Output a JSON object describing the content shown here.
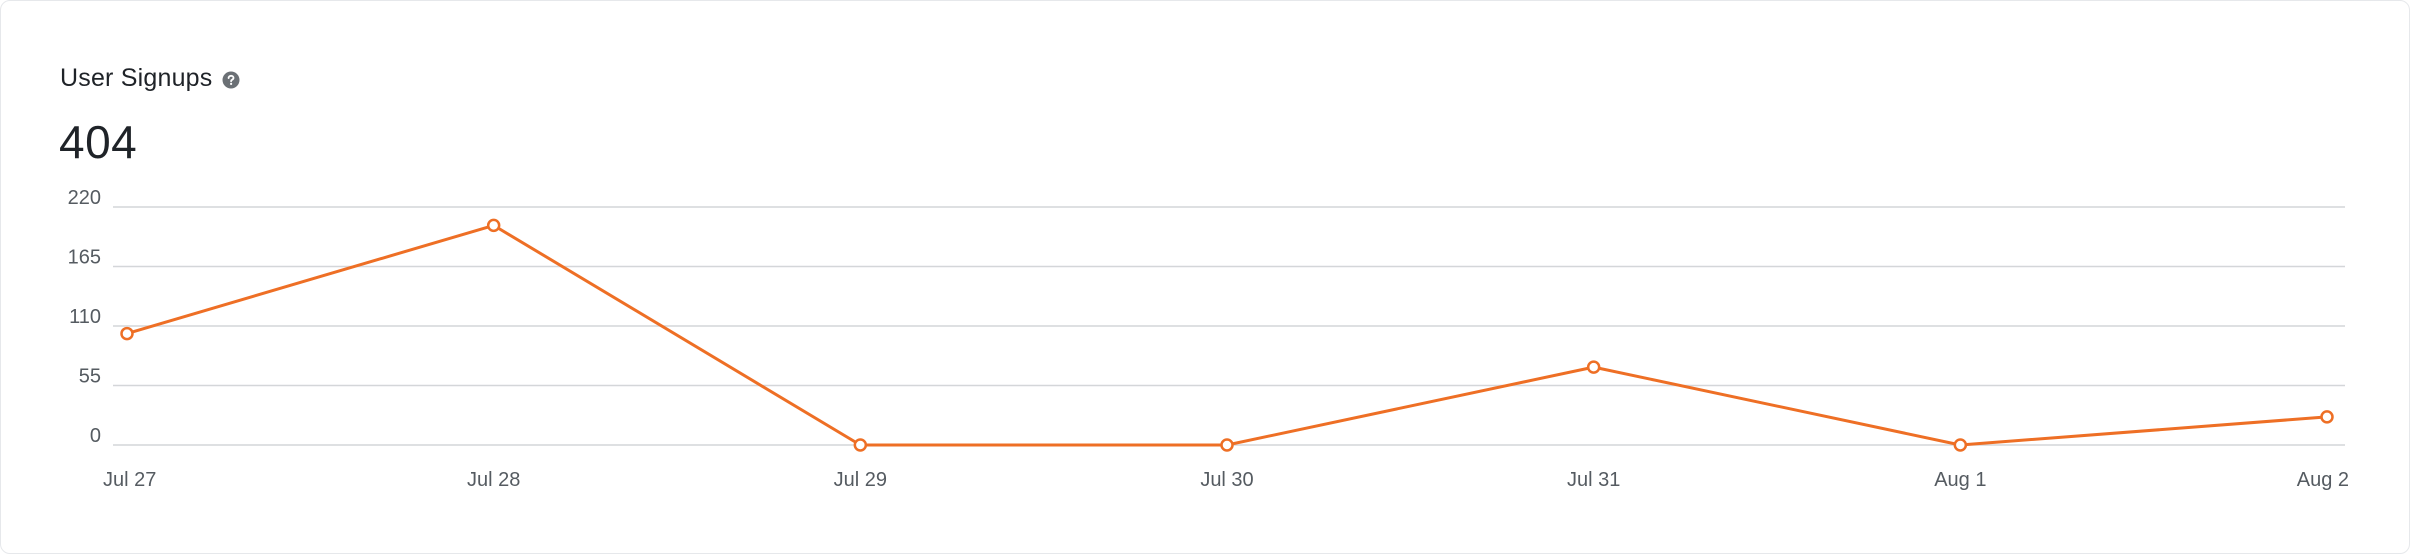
{
  "card": {
    "title": "User Signups",
    "help_icon": "question-circle-icon",
    "total": "404"
  },
  "colors": {
    "series": "#ee6f25",
    "grid": "#d4d6d9",
    "text": "#1f2328",
    "muted": "#555b61",
    "icon": "#6b7075"
  },
  "chart_data": {
    "type": "line",
    "categories": [
      "Jul 27",
      "Jul 28",
      "Jul 29",
      "Jul 30",
      "Jul 31",
      "Aug 1",
      "Aug 2"
    ],
    "series": [
      {
        "values": [
          103,
          203,
          0,
          0,
          72,
          0,
          26
        ]
      }
    ],
    "yticks": [
      "220",
      "165",
      "110",
      "55",
      "0"
    ],
    "ylim": [
      0,
      220
    ],
    "grid": true,
    "legend": "none",
    "markers": "hollow-circle"
  }
}
